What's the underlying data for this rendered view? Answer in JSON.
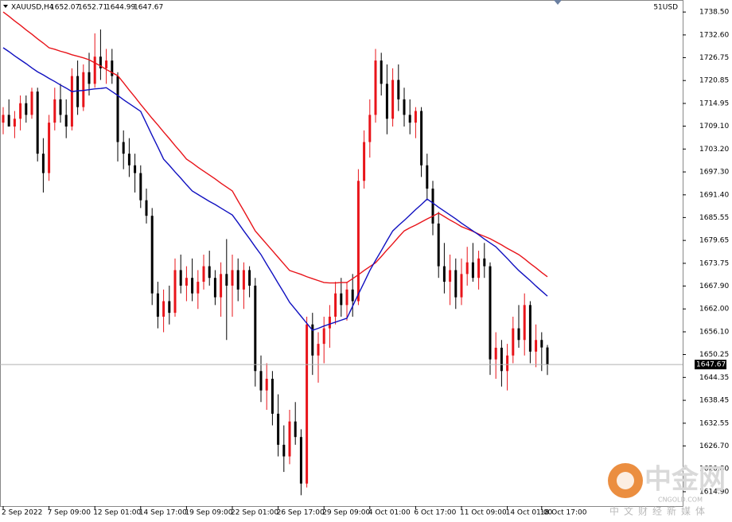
{
  "chart_data": {
    "type": "candlestick",
    "symbol": "XAUUSD,H4",
    "header_values": [
      1652.07,
      1652.71,
      1644.99,
      1647.67
    ],
    "account": "51USD",
    "watermark": {
      "title": "中金网",
      "site": "CNGOLD.COM",
      "tagline": "中文财经新媒体"
    },
    "up_color": "#e8141a",
    "down_color": "#000000",
    "last_price": 1647.67,
    "ylim": [
      1611.2,
      1741.6
    ],
    "yticks": [
      {
        "value": 1738.5,
        "label": "1738.50"
      },
      {
        "value": 1732.6,
        "label": "1732.60"
      },
      {
        "value": 1726.75,
        "label": "1726.75"
      },
      {
        "value": 1720.85,
        "label": "1720.85"
      },
      {
        "value": 1714.95,
        "label": "1714.95"
      },
      {
        "value": 1709.1,
        "label": "1709.10"
      },
      {
        "value": 1703.2,
        "label": "1703.20"
      },
      {
        "value": 1697.3,
        "label": "1697.30"
      },
      {
        "value": 1691.4,
        "label": "1691.40"
      },
      {
        "value": 1685.55,
        "label": "1685.55"
      },
      {
        "value": 1679.65,
        "label": "1679.65"
      },
      {
        "value": 1673.75,
        "label": "1673.75"
      },
      {
        "value": 1667.9,
        "label": "1667.90"
      },
      {
        "value": 1662,
        "label": "1662.00"
      },
      {
        "value": 1656.1,
        "label": "1656.10"
      },
      {
        "value": 1650.25,
        "label": "1650.25"
      },
      {
        "value": 1644.35,
        "label": "1644.35"
      },
      {
        "value": 1638.45,
        "label": "1638.45"
      },
      {
        "value": 1632.55,
        "label": "1632.55"
      },
      {
        "value": 1626.7,
        "label": "1626.70"
      },
      {
        "value": 1620.8,
        "label": "1620.80"
      },
      {
        "value": 1614.9,
        "label": "1614.90"
      }
    ],
    "categories": [
      "2 Sep 2022",
      null,
      null,
      null,
      null,
      null,
      null,
      null,
      "7 Sep 09:00",
      null,
      null,
      null,
      null,
      null,
      null,
      null,
      "12 Sep 01:00",
      null,
      null,
      null,
      null,
      null,
      null,
      null,
      "14 Sep 17:00",
      null,
      null,
      null,
      null,
      null,
      null,
      null,
      "19 Sep 09:00",
      null,
      null,
      null,
      null,
      null,
      null,
      null,
      "22 Sep 01:00",
      null,
      null,
      null,
      null,
      null,
      null,
      null,
      "26 Sep 17:00",
      null,
      null,
      null,
      null,
      null,
      null,
      null,
      "29 Sep 09:00",
      null,
      null,
      null,
      null,
      null,
      null,
      null,
      "4 Oct 01:00",
      null,
      null,
      null,
      null,
      null,
      null,
      null,
      "6 Oct 17:00",
      null,
      null,
      null,
      null,
      null,
      null,
      null,
      "11 Oct 09:00",
      null,
      null,
      null,
      null,
      null,
      null,
      null,
      "14 Oct 01:00",
      null,
      null,
      null,
      null,
      null,
      "18 Oct 17:00",
      null
    ],
    "open": [
      1710,
      1712,
      1709,
      1711,
      1715,
      1712,
      1718,
      1702,
      1697,
      1710,
      1716,
      1712,
      1709,
      1722,
      1714,
      1723,
      1720,
      1727,
      1724,
      1726,
      1722,
      1705,
      1702,
      1699,
      1697,
      1690,
      1686,
      1666,
      1660,
      1664,
      1661,
      1672,
      1668,
      1670,
      1666,
      1669,
      1673,
      1670,
      1665,
      1671,
      1668,
      1672,
      1667,
      1672,
      1668,
      1646,
      1641,
      1644,
      1635,
      1627,
      1624,
      1633,
      1629,
      1617,
      1658,
      1650,
      1653,
      1657,
      1660,
      1666,
      1663,
      1667,
      1664,
      1695,
      1705,
      1712,
      1726,
      1720,
      1711,
      1721,
      1716,
      1712,
      1710,
      1713,
      1699,
      1693,
      1684,
      1673,
      1669,
      1672,
      1665,
      1671,
      1674,
      1670,
      1675,
      1673,
      1649,
      1652,
      1646,
      1650,
      1657,
      1654,
      1663,
      1651,
      1654,
      1652.07
    ],
    "high": [
      1714,
      1716,
      1713,
      1717,
      1717,
      1719,
      1719,
      1706,
      1712,
      1719,
      1720,
      1716,
      1724,
      1726,
      1725,
      1728,
      1733,
      1734,
      1729,
      1729,
      1723,
      1708,
      1706,
      1702,
      1699,
      1693,
      1688,
      1669,
      1667,
      1668,
      1675,
      1676,
      1673,
      1675,
      1672,
      1676,
      1677,
      1672,
      1674,
      1680,
      1676,
      1675,
      1674,
      1673,
      1670,
      1650,
      1648,
      1646,
      1640,
      1632,
      1636,
      1638,
      1631,
      1660,
      1661,
      1656,
      1660,
      1663,
      1669,
      1670,
      1669,
      1671,
      1698,
      1708,
      1716,
      1729,
      1728,
      1725,
      1724,
      1725,
      1719,
      1716,
      1714,
      1714,
      1702,
      1695,
      1687,
      1679,
      1676,
      1675,
      1675,
      1678,
      1679,
      1677,
      1679,
      1674,
      1656,
      1654,
      1653,
      1660,
      1663,
      1666,
      1664,
      1658,
      1656,
      1652.71
    ],
    "low": [
      1707,
      1709,
      1706,
      1708,
      1710,
      1711,
      1700,
      1692,
      1695,
      1708,
      1710,
      1706,
      1708,
      1712,
      1713,
      1717,
      1719,
      1721,
      1720,
      1720,
      1700,
      1698,
      1696,
      1692,
      1688,
      1684,
      1663,
      1657,
      1656,
      1658,
      1660,
      1666,
      1664,
      1664,
      1662,
      1667,
      1668,
      1663,
      1660,
      1654,
      1660,
      1664,
      1662,
      1665,
      1642,
      1638,
      1636,
      1632,
      1624,
      1620,
      1622,
      1627,
      1614,
      1616,
      1645,
      1643,
      1648,
      1652,
      1658,
      1660,
      1659,
      1660,
      1663,
      1693,
      1701,
      1710,
      1717,
      1707,
      1709,
      1713,
      1709,
      1707,
      1706,
      1696,
      1690,
      1681,
      1670,
      1666,
      1663,
      1662,
      1663,
      1668,
      1669,
      1667,
      1670,
      1645,
      1644,
      1642,
      1641,
      1648,
      1652,
      1650,
      1648,
      1647,
      1646,
      1644.99
    ],
    "close": [
      1712,
      1709,
      1711,
      1715,
      1712,
      1718,
      1702,
      1697,
      1710,
      1716,
      1712,
      1709,
      1722,
      1714,
      1723,
      1720,
      1727,
      1724,
      1726,
      1722,
      1705,
      1702,
      1699,
      1697,
      1690,
      1686,
      1666,
      1660,
      1664,
      1661,
      1672,
      1668,
      1670,
      1666,
      1669,
      1673,
      1670,
      1665,
      1671,
      1668,
      1672,
      1667,
      1672,
      1668,
      1646,
      1641,
      1644,
      1635,
      1627,
      1624,
      1633,
      1629,
      1617,
      1658,
      1650,
      1653,
      1657,
      1660,
      1666,
      1663,
      1667,
      1664,
      1695,
      1705,
      1712,
      1726,
      1720,
      1711,
      1721,
      1716,
      1712,
      1710,
      1713,
      1699,
      1693,
      1684,
      1673,
      1669,
      1672,
      1665,
      1671,
      1674,
      1670,
      1675,
      1673,
      1649,
      1652,
      1646,
      1650,
      1657,
      1654,
      1663,
      1651,
      1654,
      1652.07,
      1647.67
    ],
    "series": [
      {
        "color": "#e8141a",
        "values": [
          1738.5,
          1737.4,
          1736.2,
          1735.1,
          1733.9,
          1732.8,
          1731.6,
          1730.5,
          1729.3,
          1728.9,
          1728.4,
          1728.0,
          1727.5,
          1727.1,
          1726.7,
          1726.2,
          1725.4,
          1724.6,
          1723.7,
          1722.9,
          1722.1,
          1720.3,
          1718.4,
          1716.6,
          1714.7,
          1712.9,
          1711.1,
          1709.4,
          1707.6,
          1705.9,
          1704.1,
          1702.4,
          1700.6,
          1699.6,
          1698.5,
          1697.5,
          1696.5,
          1695.5,
          1694.4,
          1693.4,
          1692.4,
          1689.8,
          1687.3,
          1684.7,
          1682.1,
          1680.4,
          1678.7,
          1677.0,
          1675.3,
          1673.6,
          1671.9,
          1671.4,
          1670.9,
          1670.3,
          1669.8,
          1669.3,
          1668.8,
          1668.7,
          1668.7,
          1668.8,
          1668.8,
          1669.8,
          1670.8,
          1671.9,
          1672.9,
          1673.9,
          1675.5,
          1677.2,
          1678.8,
          1680.5,
          1682.1,
          1682.9,
          1683.6,
          1684.4,
          1685.2,
          1685.9,
          1686.7,
          1685.8,
          1684.9,
          1684.1,
          1683.2,
          1682.6,
          1682.0,
          1681.3,
          1680.7,
          1680.1,
          1679.3,
          1678.5,
          1677.6,
          1676.8,
          1676.0,
          1674.9,
          1673.7,
          1672.6,
          1671.4,
          1670.3
        ]
      },
      {
        "color": "#1010c0",
        "values": [
          1729.3,
          1728.3,
          1727.2,
          1726.2,
          1725.2,
          1724.1,
          1723.1,
          1722.3,
          1721.4,
          1720.6,
          1719.7,
          1718.9,
          1718.0,
          1718.2,
          1718.3,
          1718.5,
          1718.7,
          1718.8,
          1719.0,
          1718.0,
          1717.0,
          1715.9,
          1714.9,
          1713.9,
          1712.9,
          1709.8,
          1706.7,
          1703.7,
          1700.6,
          1699.0,
          1697.3,
          1695.7,
          1694.0,
          1692.4,
          1691.5,
          1690.6,
          1689.7,
          1688.9,
          1688.0,
          1687.1,
          1686.2,
          1684.2,
          1682.1,
          1680.1,
          1678.0,
          1676.0,
          1673.5,
          1671.1,
          1668.6,
          1666.2,
          1663.7,
          1661.9,
          1660.1,
          1658.3,
          1656.5,
          1657.0,
          1657.6,
          1658.1,
          1658.6,
          1659.1,
          1659.6,
          1662.7,
          1665.8,
          1668.8,
          1671.9,
          1674.5,
          1677.0,
          1679.6,
          1682.1,
          1683.5,
          1684.8,
          1686.2,
          1687.6,
          1688.9,
          1690.3,
          1689.3,
          1688.2,
          1687.2,
          1686.2,
          1685.2,
          1684.1,
          1683.1,
          1682.1,
          1681.1,
          1680.0,
          1679.0,
          1678.0,
          1676.5,
          1675.0,
          1673.4,
          1671.9,
          1670.6,
          1669.3,
          1667.9,
          1666.6,
          1665.3
        ]
      }
    ]
  }
}
